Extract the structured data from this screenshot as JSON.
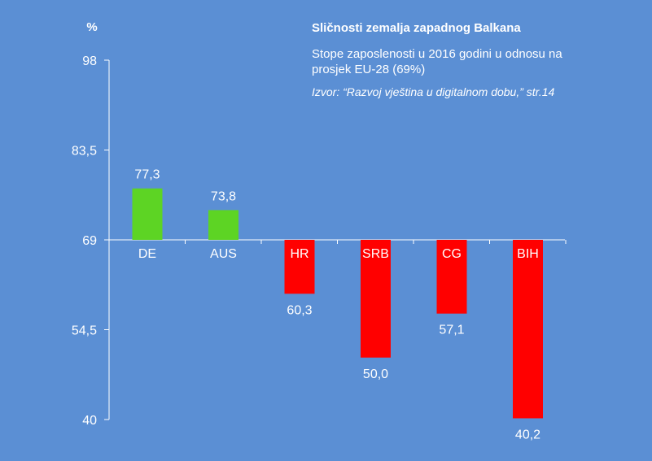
{
  "chart_data": {
    "type": "bar",
    "title": "Sličnosti zemalja zapadnog Balkana",
    "subtitle": "Stope zaposlenosti u 2016 godini u odnosu na prosjek EU-28 (69%)",
    "source": "Izvor: “Razvoj vještina u digitalnom dobu,”  str.14",
    "ylabel": "%",
    "ylim": [
      40,
      98
    ],
    "yticks": [
      "98",
      "83,5",
      "69",
      "54,5",
      "40"
    ],
    "baseline": 69,
    "categories": [
      "DE",
      "AUS",
      "HR",
      "SRB",
      "CG",
      "BIH"
    ],
    "values": [
      77.3,
      73.8,
      60.3,
      50.0,
      57.1,
      40.2
    ],
    "value_labels": [
      "77,3",
      "73,8",
      "60,3",
      "50,0",
      "57,1",
      "40,2"
    ],
    "colors": {
      "background": "#5b8fd4",
      "above": "#5dd424",
      "below": "#ff0000",
      "text": "#ffffff"
    }
  }
}
